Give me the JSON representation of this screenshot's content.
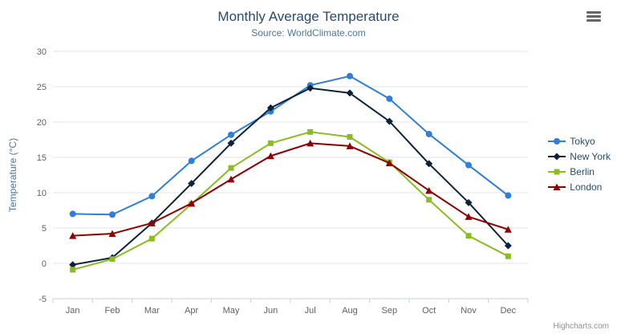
{
  "header": {
    "title": "Monthly Average Temperature",
    "subtitle": "Source: WorldClimate.com"
  },
  "toolbar": {
    "menu_icon": "hamburger-icon"
  },
  "credits": "Highcharts.com",
  "colors": {
    "title": "#274b6d",
    "subtitle": "#4d759e",
    "axis_labels": "#606060",
    "axis_title": "#4d759e",
    "gridline": "#e3e3e3",
    "axis_line": "#c0d0e0"
  },
  "chart_data": {
    "type": "line",
    "title": "Monthly Average Temperature",
    "subtitle": "Source: WorldClimate.com",
    "categories": [
      "Jan",
      "Feb",
      "Mar",
      "Apr",
      "May",
      "Jun",
      "Jul",
      "Aug",
      "Sep",
      "Oct",
      "Nov",
      "Dec"
    ],
    "series": [
      {
        "name": "Tokyo",
        "color": "#2f7ed8",
        "marker": "circle",
        "values": [
          7.0,
          6.9,
          9.5,
          14.5,
          18.2,
          21.5,
          25.2,
          26.5,
          23.3,
          18.3,
          13.9,
          9.6
        ]
      },
      {
        "name": "New York",
        "color": "#0d233a",
        "marker": "diamond",
        "values": [
          -0.2,
          0.8,
          5.7,
          11.3,
          17.0,
          22.0,
          24.8,
          24.1,
          20.1,
          14.1,
          8.6,
          2.5
        ]
      },
      {
        "name": "Berlin",
        "color": "#8bbc21",
        "marker": "square",
        "values": [
          -0.9,
          0.6,
          3.5,
          8.4,
          13.5,
          17.0,
          18.6,
          17.9,
          14.3,
          9.0,
          3.9,
          1.0
        ]
      },
      {
        "name": "London",
        "color": "#910000",
        "marker": "triangle",
        "values": [
          3.9,
          4.2,
          5.7,
          8.5,
          11.9,
          15.2,
          17.0,
          16.6,
          14.2,
          10.3,
          6.6,
          4.8
        ]
      }
    ],
    "xlabel": "",
    "ylabel": "Temperature (°C)",
    "ylim": [
      -5,
      30
    ],
    "ytick_interval": 5,
    "grid": true,
    "legend_position": "right"
  }
}
